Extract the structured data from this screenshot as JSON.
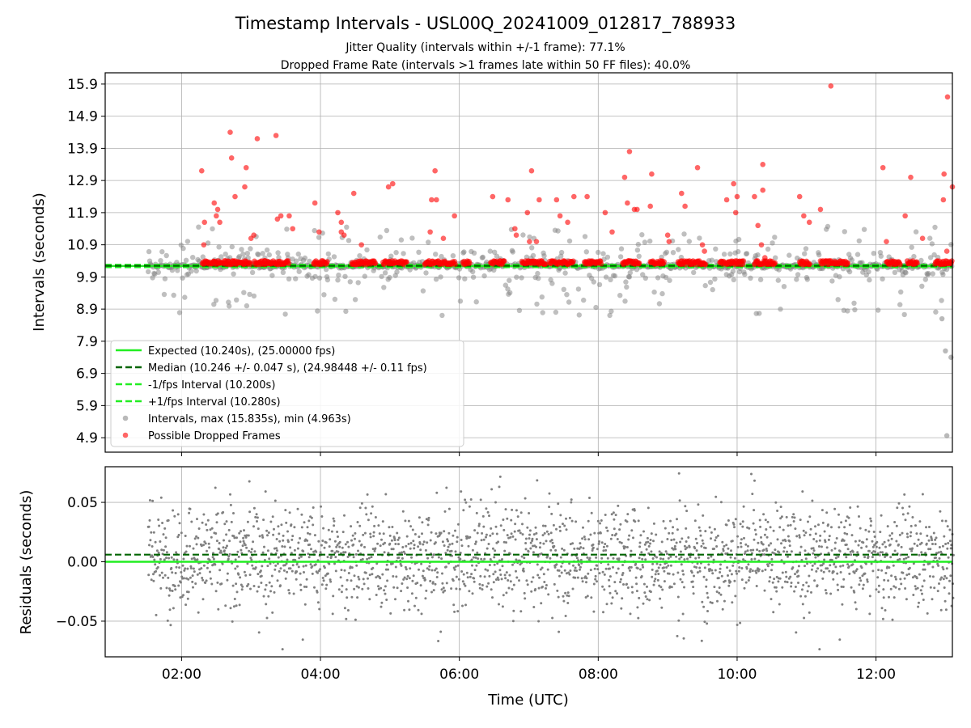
{
  "chart_data": {
    "type": "scatter",
    "title": "Timestamp Intervals - USL00Q_20241009_012817_788933",
    "subtitle_lines": [
      "Jitter Quality (intervals within +/-1 frame): 77.1%",
      "Dropped Frame Rate (intervals >1 frames late within 50 FF files): 40.0%"
    ],
    "xlabel": "Time (UTC)",
    "x_tick_labels": [
      "02:00",
      "04:00",
      "06:00",
      "08:00",
      "10:00",
      "12:00"
    ],
    "x_ticks_hours": [
      2,
      4,
      6,
      8,
      10,
      12
    ],
    "x_range_hours": [
      0.9,
      13.1
    ],
    "grid": true,
    "top_panel": {
      "ylabel": "Intervals (seconds)",
      "ylim": [
        4.45,
        16.25
      ],
      "y_tick_labels": [
        "4.9",
        "5.9",
        "6.9",
        "7.9",
        "8.9",
        "9.9",
        "10.9",
        "11.9",
        "12.9",
        "13.9",
        "14.9",
        "15.9"
      ],
      "y_ticks": [
        4.9,
        5.9,
        6.9,
        7.9,
        8.9,
        9.9,
        10.9,
        11.9,
        12.9,
        13.9,
        14.9,
        15.9
      ],
      "lines": {
        "expected": 10.24,
        "median": 10.246,
        "minus_one_frame": 10.2,
        "plus_one_frame": 10.28
      },
      "legend_position": "lower-left",
      "legend": [
        {
          "label": "Expected (10.240s), (25.00000 fps)",
          "style": "solid",
          "color": "#22ee22"
        },
        {
          "label": "Median (10.246 +/- 0.047 s), (24.98448 +/- 0.11 fps)",
          "style": "dashed",
          "color": "#006400"
        },
        {
          "label": "-1/fps Interval (10.200s)",
          "style": "dashed",
          "color": "#22ee22"
        },
        {
          "label": "+1/fps Interval (10.280s)",
          "style": "dashed",
          "color": "#22ee22"
        },
        {
          "label": "Intervals, max (15.835s), min (4.963s)",
          "style": "marker",
          "color": "#808080"
        },
        {
          "label": "Possible Dropped Frames",
          "style": "marker",
          "color": "#ff0000"
        }
      ],
      "intervals_max": 15.835,
      "intervals_min": 4.963,
      "dropped_frames": [
        {
          "x": 2.29,
          "y": 13.2
        },
        {
          "x": 2.33,
          "y": 11.6
        },
        {
          "x": 2.32,
          "y": 10.9
        },
        {
          "x": 2.47,
          "y": 12.2
        },
        {
          "x": 2.52,
          "y": 12.0
        },
        {
          "x": 2.5,
          "y": 11.8
        },
        {
          "x": 2.55,
          "y": 11.6
        },
        {
          "x": 2.7,
          "y": 14.4
        },
        {
          "x": 2.72,
          "y": 13.6
        },
        {
          "x": 2.77,
          "y": 12.4
        },
        {
          "x": 2.93,
          "y": 13.3
        },
        {
          "x": 2.91,
          "y": 12.7
        },
        {
          "x": 3.0,
          "y": 11.1
        },
        {
          "x": 3.04,
          "y": 11.2
        },
        {
          "x": 3.09,
          "y": 14.2
        },
        {
          "x": 3.36,
          "y": 14.3
        },
        {
          "x": 3.38,
          "y": 11.7
        },
        {
          "x": 3.43,
          "y": 11.8
        },
        {
          "x": 3.55,
          "y": 11.8
        },
        {
          "x": 3.6,
          "y": 11.4
        },
        {
          "x": 3.92,
          "y": 12.2
        },
        {
          "x": 3.98,
          "y": 11.3
        },
        {
          "x": 4.25,
          "y": 11.9
        },
        {
          "x": 4.3,
          "y": 11.6
        },
        {
          "x": 4.3,
          "y": 11.3
        },
        {
          "x": 4.34,
          "y": 11.2
        },
        {
          "x": 4.48,
          "y": 12.5
        },
        {
          "x": 4.59,
          "y": 10.9
        },
        {
          "x": 4.98,
          "y": 12.7
        },
        {
          "x": 5.04,
          "y": 12.8
        },
        {
          "x": 5.6,
          "y": 12.3
        },
        {
          "x": 5.65,
          "y": 13.2
        },
        {
          "x": 5.67,
          "y": 12.3
        },
        {
          "x": 5.58,
          "y": 11.3
        },
        {
          "x": 5.77,
          "y": 11.1
        },
        {
          "x": 5.93,
          "y": 11.8
        },
        {
          "x": 6.48,
          "y": 12.4
        },
        {
          "x": 6.7,
          "y": 12.3
        },
        {
          "x": 6.8,
          "y": 11.4
        },
        {
          "x": 6.82,
          "y": 11.2
        },
        {
          "x": 6.98,
          "y": 11.9
        },
        {
          "x": 7.04,
          "y": 13.2
        },
        {
          "x": 7.01,
          "y": 11.0
        },
        {
          "x": 7.11,
          "y": 11.0
        },
        {
          "x": 7.15,
          "y": 12.3
        },
        {
          "x": 7.4,
          "y": 12.3
        },
        {
          "x": 7.45,
          "y": 11.8
        },
        {
          "x": 7.56,
          "y": 11.6
        },
        {
          "x": 7.65,
          "y": 12.4
        },
        {
          "x": 7.84,
          "y": 12.4
        },
        {
          "x": 8.1,
          "y": 11.9
        },
        {
          "x": 8.2,
          "y": 11.3
        },
        {
          "x": 8.38,
          "y": 13.0
        },
        {
          "x": 8.42,
          "y": 12.2
        },
        {
          "x": 8.45,
          "y": 13.8
        },
        {
          "x": 8.52,
          "y": 12.0
        },
        {
          "x": 8.56,
          "y": 12.0
        },
        {
          "x": 8.77,
          "y": 13.1
        },
        {
          "x": 8.75,
          "y": 12.1
        },
        {
          "x": 9.0,
          "y": 11.2
        },
        {
          "x": 9.02,
          "y": 11.0
        },
        {
          "x": 9.2,
          "y": 12.5
        },
        {
          "x": 9.25,
          "y": 12.1
        },
        {
          "x": 9.43,
          "y": 13.3
        },
        {
          "x": 9.5,
          "y": 10.9
        },
        {
          "x": 9.53,
          "y": 10.7
        },
        {
          "x": 9.85,
          "y": 12.3
        },
        {
          "x": 9.95,
          "y": 12.8
        },
        {
          "x": 9.98,
          "y": 11.9
        },
        {
          "x": 10.0,
          "y": 12.4
        },
        {
          "x": 10.25,
          "y": 12.4
        },
        {
          "x": 10.3,
          "y": 11.5
        },
        {
          "x": 10.35,
          "y": 10.9
        },
        {
          "x": 10.37,
          "y": 12.6
        },
        {
          "x": 10.37,
          "y": 13.4
        },
        {
          "x": 10.4,
          "y": 10.5
        },
        {
          "x": 10.9,
          "y": 12.4
        },
        {
          "x": 10.96,
          "y": 11.8
        },
        {
          "x": 11.04,
          "y": 11.6
        },
        {
          "x": 11.2,
          "y": 12.0
        },
        {
          "x": 11.35,
          "y": 15.84
        },
        {
          "x": 12.1,
          "y": 13.3
        },
        {
          "x": 12.15,
          "y": 11.0
        },
        {
          "x": 12.42,
          "y": 11.8
        },
        {
          "x": 12.5,
          "y": 13.0
        },
        {
          "x": 12.67,
          "y": 11.1
        },
        {
          "x": 12.98,
          "y": 13.1
        },
        {
          "x": 12.97,
          "y": 12.3
        },
        {
          "x": 13.03,
          "y": 15.5
        },
        {
          "x": 13.1,
          "y": 12.7
        },
        {
          "x": 13.02,
          "y": 10.7
        }
      ]
    },
    "bottom_panel": {
      "ylabel": "Residuals (seconds)",
      "ylim": [
        -0.08,
        0.08
      ],
      "y_tick_labels": [
        "0.05",
        "0.00",
        "−0.05"
      ],
      "y_ticks": [
        0.05,
        0.0,
        -0.05
      ],
      "lines": {
        "zero": 0.0,
        "median_offset": 0.006
      }
    },
    "colors": {
      "expected": "#22ee22",
      "median": "#006400",
      "intervals": "#808080",
      "dropped": "#ff0000",
      "grid": "#b0b0b0"
    }
  }
}
